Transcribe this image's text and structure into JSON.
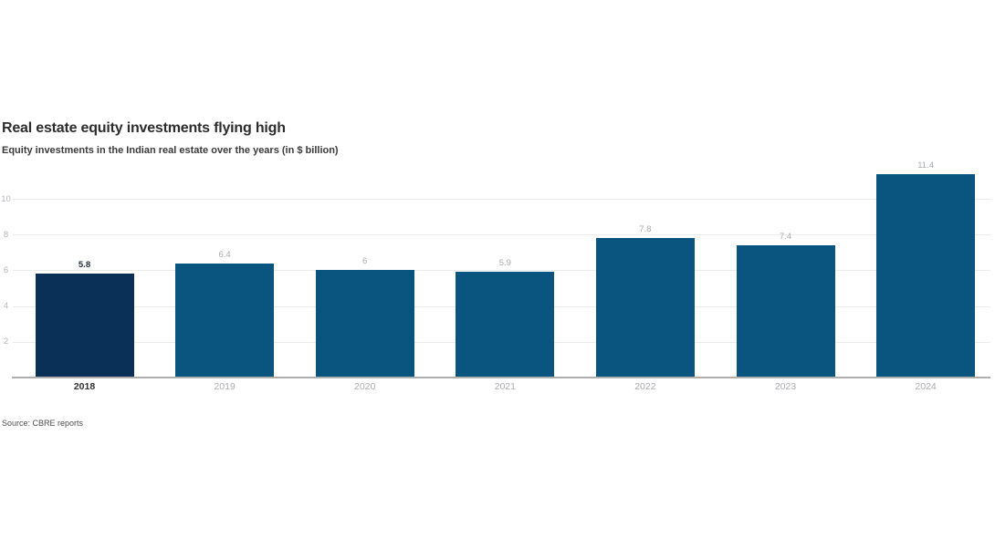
{
  "header": {
    "title": "Real estate equity investments flying high",
    "subtitle": "Equity investments in the Indian real estate over the years (in $ billion)"
  },
  "chart_data": {
    "type": "bar",
    "title": "Real estate equity investments flying high",
    "subtitle": "Equity investments in the Indian real estate over the years (in $ billion)",
    "categories": [
      "2018",
      "2019",
      "2020",
      "2021",
      "2022",
      "2023",
      "2024"
    ],
    "values": [
      5.8,
      6.4,
      6,
      5.9,
      7.8,
      7.4,
      11.4
    ],
    "value_labels": [
      "5.8",
      "6.4",
      "6",
      "5.9",
      "7.8",
      "7.4",
      "11.4"
    ],
    "highlighted_index": 0,
    "highlighted_category": "2018",
    "xlabel": "",
    "ylabel": "",
    "ylim": [
      0,
      11.5
    ],
    "yticks": [
      2,
      4,
      6,
      8,
      10
    ],
    "grid": true,
    "legend": false,
    "colors": {
      "bar_default": "#0a5480",
      "bar_highlight": "#0a3058",
      "value_label_default": "#a8abb0",
      "value_label_highlight": "#1c2b3e",
      "xtick_label_default": "#a8abb0",
      "xtick_label_highlight": "#303030",
      "ytick_label": "#b2b6bc",
      "gridline": "#ebebeb",
      "axis_line": "#aeaeae"
    }
  },
  "footer": {
    "source": "Source: CBRE reports"
  }
}
